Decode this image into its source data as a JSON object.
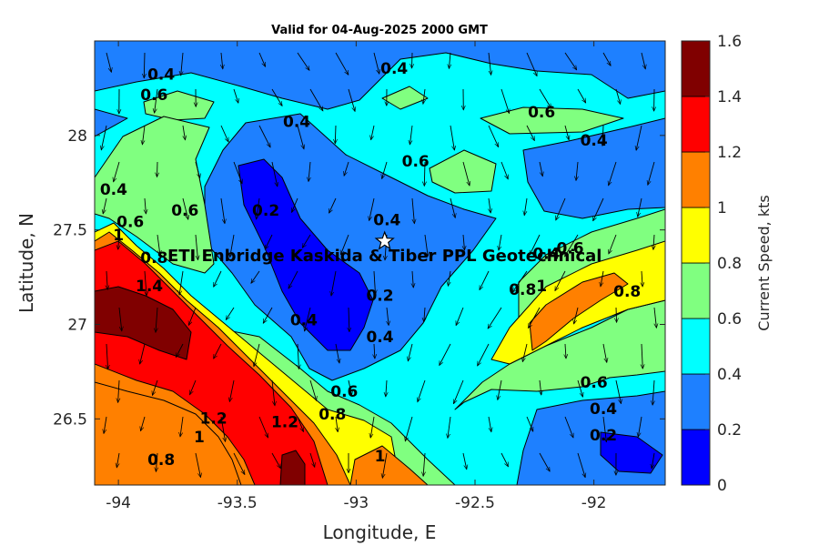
{
  "chart_data": {
    "type": "filled-contour",
    "title": "Valid for 04-Aug-2025 2000 GMT",
    "xlabel": "Longitude, E",
    "ylabel": "Latitude, N",
    "xlim": [
      -94.1,
      -91.7
    ],
    "ylim": [
      26.15,
      28.5
    ],
    "x_ticks": [
      -94,
      -93.5,
      -93,
      -92.5,
      -92
    ],
    "x_tick_labels": [
      "-94",
      "-93.5",
      "-93",
      "-92.5",
      "-92"
    ],
    "y_ticks": [
      26.5,
      27,
      27.5,
      28
    ],
    "y_tick_labels": [
      "26.5",
      "27",
      "27.5",
      "28"
    ],
    "colorbar": {
      "label": "Current Speed, kts",
      "levels": [
        0,
        0.2,
        0.4,
        0.6,
        0.8,
        1.0,
        1.2,
        1.4,
        1.6
      ],
      "tick_labels": [
        "0",
        "0.2",
        "0.4",
        "0.6",
        "0.8",
        "1",
        "1.2",
        "1.4",
        "1.6"
      ],
      "colors": [
        "#0000ff",
        "#1e80ff",
        "#00ffff",
        "#80ff80",
        "#ffff00",
        "#ff8000",
        "#ff0000",
        "#800000"
      ]
    },
    "site": {
      "label": "ETI Enbridge  Kaskida & Tiber PPL Geotechnical",
      "lon": -92.88,
      "lat": 27.44,
      "marker": "star"
    },
    "contour_labels": [
      {
        "text": "0.4",
        "lon": -93.82,
        "lat": 28.32
      },
      {
        "text": "0.6",
        "lon": -93.85,
        "lat": 28.21
      },
      {
        "text": "0.4",
        "lon": -92.84,
        "lat": 28.35
      },
      {
        "text": "0.6",
        "lon": -92.22,
        "lat": 28.12
      },
      {
        "text": "0.4",
        "lon": -92.0,
        "lat": 27.97
      },
      {
        "text": "0.4",
        "lon": -93.25,
        "lat": 28.07
      },
      {
        "text": "0.6",
        "lon": -92.75,
        "lat": 27.86
      },
      {
        "text": "0.4",
        "lon": -94.02,
        "lat": 27.71
      },
      {
        "text": "0.6",
        "lon": -93.95,
        "lat": 27.54
      },
      {
        "text": "0.6",
        "lon": -93.72,
        "lat": 27.6
      },
      {
        "text": "0.2",
        "lon": -93.38,
        "lat": 27.6
      },
      {
        "text": "0.4",
        "lon": -92.87,
        "lat": 27.55
      },
      {
        "text": "1",
        "lon": -94.0,
        "lat": 27.47
      },
      {
        "text": "0.8",
        "lon": -93.85,
        "lat": 27.35
      },
      {
        "text": "1.4",
        "lon": -93.87,
        "lat": 27.2
      },
      {
        "text": "0.4",
        "lon": -93.22,
        "lat": 27.02
      },
      {
        "text": "0.2",
        "lon": -92.9,
        "lat": 27.15
      },
      {
        "text": "0.4",
        "lon": -92.9,
        "lat": 26.93
      },
      {
        "text": "0.4",
        "lon": -92.2,
        "lat": 27.37
      },
      {
        "text": "0.6",
        "lon": -92.1,
        "lat": 27.4
      },
      {
        "text": "0.8",
        "lon": -92.3,
        "lat": 27.18
      },
      {
        "text": "1",
        "lon": -92.22,
        "lat": 27.2
      },
      {
        "text": "0.8",
        "lon": -91.86,
        "lat": 27.17
      },
      {
        "text": "0.6",
        "lon": -92.0,
        "lat": 26.69
      },
      {
        "text": "0.6",
        "lon": -93.05,
        "lat": 26.64
      },
      {
        "text": "0.8",
        "lon": -93.1,
        "lat": 26.52
      },
      {
        "text": "0.4",
        "lon": -91.96,
        "lat": 26.55
      },
      {
        "text": "0.2",
        "lon": -91.96,
        "lat": 26.41
      },
      {
        "text": "1.2",
        "lon": -93.6,
        "lat": 26.5
      },
      {
        "text": "1",
        "lon": -93.66,
        "lat": 26.4
      },
      {
        "text": "1.2",
        "lon": -93.3,
        "lat": 26.48
      },
      {
        "text": "1",
        "lon": -92.9,
        "lat": 26.3
      },
      {
        "text": "0.8",
        "lon": -93.82,
        "lat": 26.28
      }
    ]
  }
}
